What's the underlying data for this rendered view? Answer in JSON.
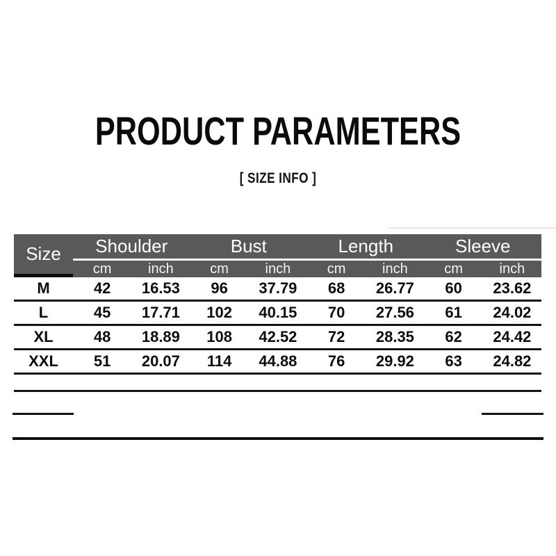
{
  "page": {
    "title": "PRODUCT PARAMETERS",
    "subtitle": "[ SIZE INFO ]"
  },
  "table": {
    "size_label": "Size",
    "groups": [
      "Shoulder",
      "Bust",
      "Length",
      "Sleeve"
    ],
    "units": [
      "cm",
      "inch",
      "cm",
      "inch",
      "cm",
      "inch",
      "cm",
      "inch"
    ],
    "rows": [
      {
        "size": "M",
        "values": [
          "42",
          "16.53",
          "96",
          "37.79",
          "68",
          "26.77",
          "60",
          "23.62"
        ]
      },
      {
        "size": "L",
        "values": [
          "45",
          "17.71",
          "102",
          "40.15",
          "70",
          "27.56",
          "61",
          "24.02"
        ]
      },
      {
        "size": "XL",
        "values": [
          "48",
          "18.89",
          "108",
          "42.52",
          "72",
          "28.35",
          "62",
          "24.42"
        ]
      },
      {
        "size": "XXL",
        "values": [
          "51",
          "20.07",
          "114",
          "44.88",
          "76",
          "29.92",
          "63",
          "24.82"
        ]
      }
    ]
  },
  "colors": {
    "header_bg": "#58595b",
    "header_text": "#ffffff",
    "size_column_bar": "#0c0c0c",
    "row_line": "#141414",
    "title_text": "#0b0b0b",
    "background": "#ffffff"
  }
}
